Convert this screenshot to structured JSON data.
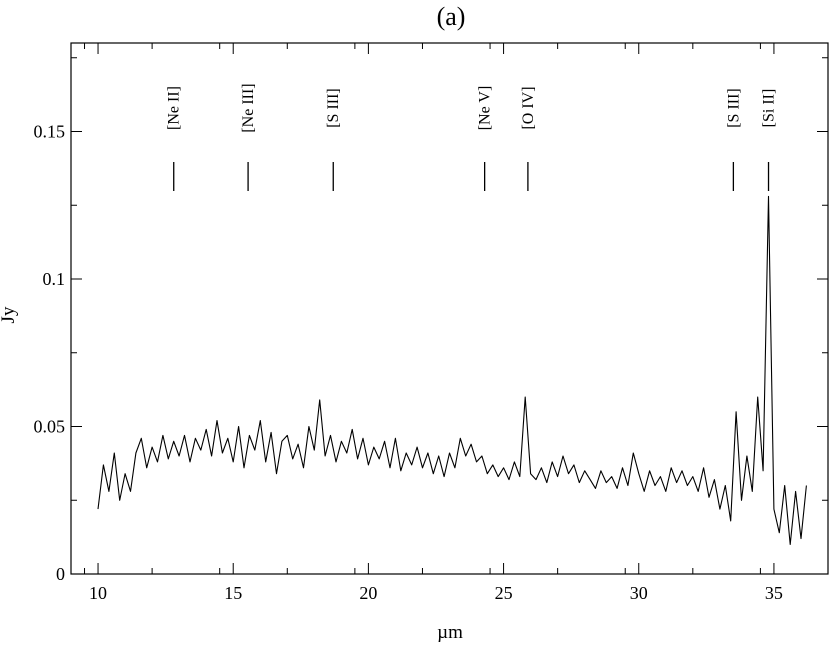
{
  "chart_data": {
    "type": "line",
    "title": "(a)",
    "xlabel": "µm",
    "ylabel": "Jy",
    "xlim": [
      9,
      37
    ],
    "ylim": [
      0,
      0.18
    ],
    "x_ticks": [
      10,
      15,
      20,
      25,
      30,
      35
    ],
    "x_tick_labels": [
      "10",
      "15",
      "20",
      "25",
      "30",
      "35"
    ],
    "y_ticks": [
      0,
      0.05,
      0.1,
      0.15
    ],
    "y_tick_labels": [
      "0",
      "0.05",
      "0.1",
      "0.15"
    ],
    "grid": false,
    "line_markers": [
      {
        "label": "[Ne II]",
        "x": 12.8
      },
      {
        "label": "[Ne III]",
        "x": 15.55
      },
      {
        "label": "[S III]",
        "x": 18.7
      },
      {
        "label": "[Ne V]",
        "x": 24.3
      },
      {
        "label": "[O IV]",
        "x": 25.9
      },
      {
        "label": "[S III]",
        "x": 33.5
      },
      {
        "label": "[Si II]",
        "x": 34.8
      }
    ],
    "series": [
      {
        "x": [
          10.0,
          10.2,
          10.4,
          10.6,
          10.8,
          11.0,
          11.2,
          11.4,
          11.6,
          11.8,
          12.0,
          12.2,
          12.4,
          12.6,
          12.8,
          13.0,
          13.2,
          13.4,
          13.6,
          13.8,
          14.0,
          14.2,
          14.4,
          14.6,
          14.8,
          15.0,
          15.2,
          15.4,
          15.6,
          15.8,
          16.0,
          16.2,
          16.4,
          16.6,
          16.8,
          17.0,
          17.2,
          17.4,
          17.6,
          17.8,
          18.0,
          18.2,
          18.4,
          18.6,
          18.8,
          19.0,
          19.2,
          19.4,
          19.6,
          19.8,
          20.0,
          20.2,
          20.4,
          20.6,
          20.8,
          21.0,
          21.2,
          21.4,
          21.6,
          21.8,
          22.0,
          22.2,
          22.4,
          22.6,
          22.8,
          23.0,
          23.2,
          23.4,
          23.6,
          23.8,
          24.0,
          24.2,
          24.4,
          24.6,
          24.8,
          25.0,
          25.2,
          25.4,
          25.6,
          25.8,
          26.0,
          26.2,
          26.4,
          26.6,
          26.8,
          27.0,
          27.2,
          27.4,
          27.6,
          27.8,
          28.0,
          28.2,
          28.4,
          28.6,
          28.8,
          29.0,
          29.2,
          29.4,
          29.6,
          29.8,
          30.0,
          30.2,
          30.4,
          30.6,
          30.8,
          31.0,
          31.2,
          31.4,
          31.6,
          31.8,
          32.0,
          32.2,
          32.4,
          32.6,
          32.8,
          33.0,
          33.2,
          33.4,
          33.6,
          33.8,
          34.0,
          34.2,
          34.4,
          34.6,
          34.8,
          35.0,
          35.2,
          35.4,
          35.6,
          35.8,
          36.0,
          36.2
        ],
        "values": [
          0.022,
          0.037,
          0.028,
          0.041,
          0.025,
          0.034,
          0.028,
          0.041,
          0.046,
          0.036,
          0.043,
          0.038,
          0.047,
          0.039,
          0.045,
          0.04,
          0.047,
          0.038,
          0.046,
          0.042,
          0.049,
          0.04,
          0.052,
          0.041,
          0.046,
          0.038,
          0.05,
          0.036,
          0.047,
          0.042,
          0.052,
          0.038,
          0.048,
          0.034,
          0.045,
          0.047,
          0.039,
          0.044,
          0.036,
          0.05,
          0.042,
          0.059,
          0.04,
          0.047,
          0.038,
          0.045,
          0.041,
          0.049,
          0.039,
          0.046,
          0.037,
          0.043,
          0.039,
          0.045,
          0.036,
          0.046,
          0.035,
          0.041,
          0.037,
          0.043,
          0.036,
          0.041,
          0.034,
          0.04,
          0.033,
          0.041,
          0.036,
          0.046,
          0.04,
          0.044,
          0.038,
          0.04,
          0.034,
          0.037,
          0.033,
          0.036,
          0.032,
          0.038,
          0.033,
          0.06,
          0.034,
          0.032,
          0.036,
          0.031,
          0.038,
          0.033,
          0.04,
          0.034,
          0.037,
          0.031,
          0.035,
          0.032,
          0.029,
          0.035,
          0.031,
          0.033,
          0.029,
          0.036,
          0.03,
          0.041,
          0.034,
          0.028,
          0.035,
          0.03,
          0.033,
          0.028,
          0.036,
          0.031,
          0.035,
          0.03,
          0.033,
          0.028,
          0.036,
          0.026,
          0.032,
          0.022,
          0.03,
          0.018,
          0.055,
          0.025,
          0.04,
          0.028,
          0.06,
          0.035,
          0.128,
          0.022,
          0.014,
          0.03,
          0.01,
          0.028,
          0.012,
          0.03
        ]
      }
    ]
  }
}
